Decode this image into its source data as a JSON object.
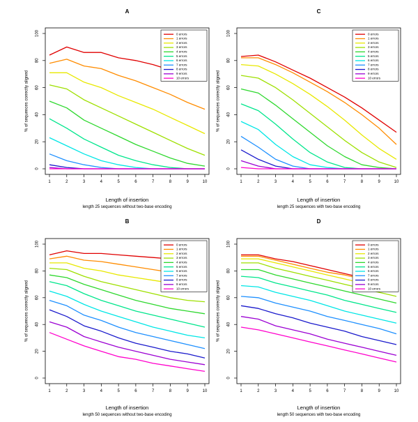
{
  "figure": {
    "xlabel": "Length of insertion",
    "ylabel": "% of sequences correctly aligned",
    "error_labels": [
      "0 errors",
      "1 errors",
      "2 errors",
      "3 errors",
      "4 errors",
      "5 errors",
      "6 errors",
      "7 errors",
      "8 errors",
      "9 errors",
      "10 errors"
    ],
    "series_colors": [
      "#e00000",
      "#ff8c00",
      "#e8e800",
      "#9ee000",
      "#2ed82e",
      "#00e68c",
      "#00e6e6",
      "#1e90ff",
      "#1a1acc",
      "#9b00d3",
      "#ff00cc"
    ]
  },
  "chart_data": [
    {
      "type": "line",
      "title": "A",
      "subtitle": "length 25 sequences without two-base encoding",
      "xlabel": "Length of insertion",
      "ylabel": "% of sequences correctly aligned",
      "x": [
        1,
        2,
        3,
        4,
        5,
        6,
        7,
        8,
        9,
        10
      ],
      "xticks": [
        "1",
        "2",
        "3",
        "4",
        "5",
        "6",
        "7",
        "8",
        "9",
        "10"
      ],
      "yticks": [
        "0",
        "20",
        "40",
        "60",
        "80",
        "100"
      ],
      "ylim": [
        0,
        100
      ],
      "legend": "top-right",
      "series": [
        {
          "name": "0 errors",
          "values": [
            84,
            90,
            86,
            86,
            82,
            80,
            77,
            73,
            69,
            65
          ]
        },
        {
          "name": "1 errors",
          "values": [
            78,
            81,
            76,
            74,
            69,
            65,
            60,
            55,
            49,
            44
          ]
        },
        {
          "name": "2 errors",
          "values": [
            71,
            71,
            64,
            60,
            54,
            49,
            44,
            38,
            32,
            26
          ]
        },
        {
          "name": "3 errors",
          "values": [
            62,
            59,
            51,
            45,
            39,
            33,
            27,
            21,
            15,
            10
          ]
        },
        {
          "name": "4 errors",
          "values": [
            50,
            45,
            36,
            30,
            24,
            18,
            13,
            8,
            4,
            2
          ]
        },
        {
          "name": "5 errors",
          "values": [
            37,
            30,
            22,
            16,
            10,
            6,
            3,
            1,
            0,
            0
          ]
        },
        {
          "name": "6 errors",
          "values": [
            23,
            17,
            11,
            6,
            3,
            1,
            0,
            0,
            0,
            0
          ]
        },
        {
          "name": "7 errors",
          "values": [
            11,
            6,
            3,
            1,
            0,
            0,
            0,
            0,
            0,
            0
          ]
        },
        {
          "name": "8 errors",
          "values": [
            3,
            1,
            0,
            0,
            0,
            0,
            0,
            0,
            0,
            0
          ]
        },
        {
          "name": "9 errors",
          "values": [
            1,
            0,
            0,
            0,
            0,
            0,
            0,
            0,
            0,
            0
          ]
        },
        {
          "name": "10 errors",
          "values": [
            0,
            0,
            0,
            0,
            0,
            0,
            0,
            0,
            0,
            0
          ]
        }
      ]
    },
    {
      "type": "line",
      "title": "C",
      "subtitle": "length 25 sequences with two-base encoding",
      "xlabel": "Length of insertion",
      "ylabel": "% of sequences correctly aligned",
      "x": [
        1,
        2,
        3,
        4,
        5,
        6,
        7,
        8,
        9,
        10
      ],
      "xticks": [
        "1",
        "2",
        "3",
        "4",
        "5",
        "6",
        "7",
        "8",
        "9",
        "10"
      ],
      "yticks": [
        "0",
        "20",
        "40",
        "60",
        "80",
        "100"
      ],
      "ylim": [
        0,
        100
      ],
      "legend": "top-right",
      "series": [
        {
          "name": "0 errors",
          "values": [
            83,
            84,
            79,
            73,
            67,
            60,
            53,
            45,
            36,
            27
          ]
        },
        {
          "name": "1 errors",
          "values": [
            82,
            82,
            77,
            71,
            64,
            57,
            49,
            40,
            30,
            18
          ]
        },
        {
          "name": "2 errors",
          "values": [
            77,
            76,
            70,
            63,
            55,
            46,
            36,
            25,
            15,
            7
          ]
        },
        {
          "name": "3 errors",
          "values": [
            69,
            67,
            60,
            51,
            41,
            31,
            21,
            12,
            5,
            1
          ]
        },
        {
          "name": "4 errors",
          "values": [
            59,
            56,
            47,
            37,
            27,
            17,
            9,
            3,
            1,
            0
          ]
        },
        {
          "name": "5 errors",
          "values": [
            48,
            43,
            33,
            22,
            12,
            5,
            1,
            0,
            0,
            0
          ]
        },
        {
          "name": "6 errors",
          "values": [
            35,
            29,
            18,
            9,
            3,
            1,
            0,
            0,
            0,
            0
          ]
        },
        {
          "name": "7 errors",
          "values": [
            24,
            16,
            7,
            2,
            0,
            0,
            0,
            0,
            0,
            0
          ]
        },
        {
          "name": "8 errors",
          "values": [
            14,
            7,
            2,
            0,
            0,
            0,
            0,
            0,
            0,
            0
          ]
        },
        {
          "name": "9 errors",
          "values": [
            6,
            2,
            0,
            0,
            0,
            0,
            0,
            0,
            0,
            0
          ]
        },
        {
          "name": "10 errors",
          "values": [
            1,
            0,
            0,
            0,
            0,
            0,
            0,
            0,
            0,
            0
          ]
        }
      ]
    },
    {
      "type": "line",
      "title": "B",
      "subtitle": "length 50 sequences without two-base encoding",
      "xlabel": "Length of insertion",
      "ylabel": "% of sequences correctly aligned",
      "x": [
        1,
        2,
        3,
        4,
        5,
        6,
        7,
        8,
        9,
        10
      ],
      "xticks": [
        "1",
        "2",
        "3",
        "4",
        "5",
        "6",
        "7",
        "8",
        "9",
        "10"
      ],
      "yticks": [
        "0",
        "20",
        "40",
        "60",
        "80",
        "100"
      ],
      "ylim": [
        0,
        100
      ],
      "legend": "top-right",
      "series": [
        {
          "name": "0 errors",
          "values": [
            92,
            95,
            93,
            93,
            92,
            91,
            90,
            89,
            87,
            86
          ]
        },
        {
          "name": "1 errors",
          "values": [
            89,
            91,
            88,
            87,
            85,
            83,
            81,
            79,
            78,
            76
          ]
        },
        {
          "name": "2 errors",
          "values": [
            86,
            86,
            82,
            80,
            77,
            75,
            73,
            71,
            69,
            67
          ]
        },
        {
          "name": "3 errors",
          "values": [
            82,
            81,
            76,
            72,
            69,
            66,
            63,
            60,
            58,
            57
          ]
        },
        {
          "name": "4 errors",
          "values": [
            77,
            75,
            70,
            66,
            62,
            58,
            55,
            52,
            50,
            48
          ]
        },
        {
          "name": "5 errors",
          "values": [
            72,
            69,
            63,
            58,
            54,
            50,
            47,
            44,
            41,
            38
          ]
        },
        {
          "name": "6 errors",
          "values": [
            65,
            61,
            55,
            50,
            46,
            42,
            38,
            35,
            32,
            30
          ]
        },
        {
          "name": "7 errors",
          "values": [
            58,
            54,
            47,
            43,
            38,
            34,
            31,
            28,
            25,
            22
          ]
        },
        {
          "name": "8 errors",
          "values": [
            51,
            46,
            39,
            35,
            30,
            26,
            23,
            20,
            18,
            15
          ]
        },
        {
          "name": "9 errors",
          "values": [
            42,
            38,
            31,
            27,
            23,
            20,
            17,
            14,
            12,
            10
          ]
        },
        {
          "name": "10 errors",
          "values": [
            34,
            29,
            24,
            20,
            16,
            14,
            11,
            9,
            7,
            5
          ]
        }
      ]
    },
    {
      "type": "line",
      "title": "D",
      "subtitle": "length 50 sequences with two-base encoding",
      "xlabel": "Length of insertion",
      "ylabel": "% of sequences correctly aligned",
      "x": [
        1,
        2,
        3,
        4,
        5,
        6,
        7,
        8,
        9,
        10
      ],
      "xticks": [
        "1",
        "2",
        "3",
        "4",
        "5",
        "6",
        "7",
        "8",
        "9",
        "10"
      ],
      "yticks": [
        "0",
        "20",
        "40",
        "60",
        "80",
        "100"
      ],
      "ylim": [
        0,
        100
      ],
      "legend": "top-right",
      "series": [
        {
          "name": "0 errors",
          "values": [
            92,
            92,
            89,
            87,
            84,
            81,
            78,
            75,
            73,
            70
          ]
        },
        {
          "name": "1 errors",
          "values": [
            91,
            91,
            88,
            85,
            82,
            79,
            77,
            74,
            72,
            69
          ]
        },
        {
          "name": "2 errors",
          "values": [
            89,
            89,
            86,
            83,
            80,
            77,
            74,
            71,
            68,
            65
          ]
        },
        {
          "name": "3 errors",
          "values": [
            86,
            86,
            82,
            79,
            76,
            73,
            70,
            67,
            64,
            61
          ]
        },
        {
          "name": "4 errors",
          "values": [
            81,
            81,
            77,
            74,
            71,
            68,
            65,
            62,
            59,
            56
          ]
        },
        {
          "name": "5 errors",
          "values": [
            76,
            75,
            71,
            68,
            65,
            62,
            58,
            55,
            52,
            49
          ]
        },
        {
          "name": "6 errors",
          "values": [
            69,
            68,
            64,
            61,
            58,
            54,
            50,
            47,
            44,
            41
          ]
        },
        {
          "name": "7 errors",
          "values": [
            61,
            60,
            56,
            53,
            50,
            46,
            43,
            40,
            37,
            33
          ]
        },
        {
          "name": "8 errors",
          "values": [
            54,
            52,
            48,
            45,
            41,
            38,
            35,
            31,
            28,
            25
          ]
        },
        {
          "name": "9 errors",
          "values": [
            46,
            44,
            39,
            36,
            33,
            29,
            26,
            23,
            20,
            17
          ]
        },
        {
          "name": "10 errors",
          "values": [
            38,
            36,
            33,
            30,
            27,
            24,
            21,
            18,
            15,
            12
          ]
        }
      ]
    }
  ]
}
